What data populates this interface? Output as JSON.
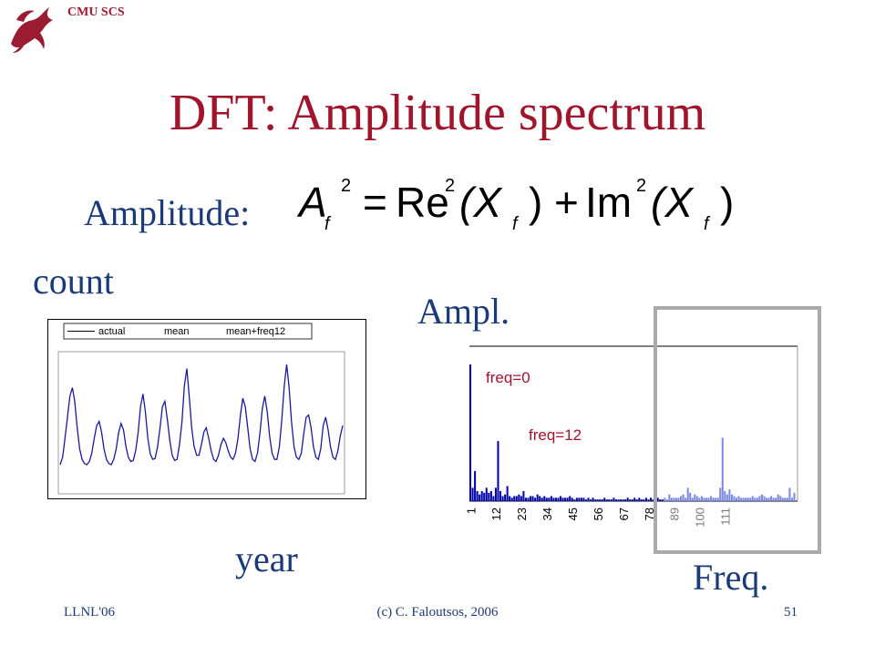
{
  "header": {
    "org": "CMU SCS",
    "logo_icon": "dragon-icon",
    "accent": "#a0142c"
  },
  "slide": {
    "title": "DFT: Amplitude spectrum",
    "amplitude_label": "Amplitude:",
    "count_label": "count",
    "ampl_label": "Ampl.",
    "year_label": "year",
    "freq_label": "Freq."
  },
  "formula": {
    "lhs": "A",
    "lhs_sub": "f",
    "lhs_sup": "2",
    "eq": "=",
    "re": "Re",
    "re_sup": "2",
    "x1": "(X",
    "x1_sub": "f",
    "close1": ")",
    "plus": "+",
    "im": "Im",
    "im_sup": "2",
    "x2": "(X",
    "x2_sub": "f",
    "close2": ")"
  },
  "chart_data": [
    {
      "type": "line",
      "legend": [
        "actual",
        "mean",
        "mean+freq12"
      ],
      "legend_position": "top",
      "series": [
        {
          "name": "actual",
          "color": "#1a1a9a",
          "values": [
            5,
            12,
            30,
            50,
            70,
            78,
            65,
            40,
            20,
            10,
            6,
            5,
            8,
            16,
            30,
            42,
            46,
            36,
            20,
            10,
            6,
            5,
            10,
            20,
            35,
            44,
            38,
            22,
            12,
            8,
            9,
            18,
            35,
            60,
            72,
            55,
            30,
            15,
            10,
            11,
            22,
            40,
            60,
            65,
            48,
            28,
            14,
            9,
            10,
            24,
            45,
            80,
            96,
            70,
            40,
            22,
            14,
            14,
            24,
            36,
            40,
            30,
            18,
            10,
            8,
            14,
            24,
            30,
            26,
            18,
            12,
            10,
            16,
            30,
            52,
            68,
            60,
            40,
            20,
            10,
            8,
            16,
            34,
            58,
            70,
            55,
            32,
            16,
            10,
            10,
            22,
            48,
            80,
            100,
            78,
            45,
            22,
            12,
            10,
            16,
            34,
            50,
            52,
            40,
            22,
            12,
            10,
            20,
            42,
            50,
            38,
            22,
            12,
            10,
            18,
            32,
            42
          ]
        }
      ]
    },
    {
      "type": "bar",
      "x_ticks": [
        "1",
        "12",
        "23",
        "34",
        "45",
        "56",
        "67",
        "78",
        "89",
        "100",
        "111"
      ],
      "annotations": [
        "freq=0",
        "freq=12"
      ],
      "highlight_colors": {
        "dark": "#0000aa",
        "light": "#7a8ae0"
      },
      "values": [
        82,
        8,
        18,
        6,
        4,
        6,
        5,
        8,
        5,
        6,
        3,
        8,
        36,
        6,
        3,
        4,
        9,
        3,
        2,
        3,
        3,
        4,
        3,
        6,
        2,
        2,
        3,
        3,
        2,
        4,
        3,
        2,
        3,
        2,
        2,
        3,
        2,
        2,
        2,
        3,
        2,
        2,
        2,
        3,
        2,
        1,
        2,
        2,
        2,
        2,
        1,
        2,
        1,
        2,
        1,
        1,
        1,
        1,
        2,
        1,
        1,
        1,
        2,
        1,
        1,
        1,
        1,
        1,
        2,
        1,
        1,
        2,
        1,
        2,
        1,
        1,
        2,
        1,
        2,
        1,
        1,
        2,
        1,
        1,
        2,
        1,
        4,
        2,
        2,
        2,
        2,
        3,
        4,
        2,
        8,
        5,
        2,
        4,
        3,
        2,
        3,
        2,
        2,
        2,
        3,
        2,
        2,
        2,
        8,
        38,
        6,
        4,
        7,
        4,
        3,
        2,
        3,
        2,
        2,
        2,
        2,
        2,
        3,
        2,
        2,
        3,
        4,
        3,
        2,
        2,
        3,
        2,
        2,
        4,
        3,
        2,
        2,
        2,
        8,
        2,
        5
      ]
    }
  ],
  "footer": {
    "left": "LLNL'06",
    "center": "(c) C. Faloutsos, 2006",
    "right": "51"
  }
}
